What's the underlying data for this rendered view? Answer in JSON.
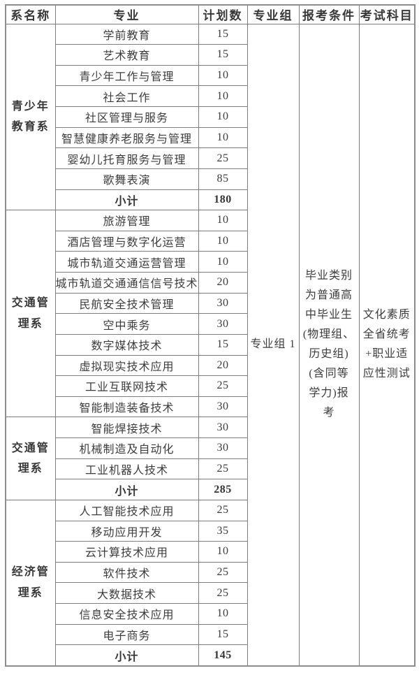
{
  "table": {
    "headers": [
      "系名称",
      "专业",
      "计划数",
      "专业组",
      "报考条件",
      "考试科目"
    ],
    "merged": {
      "group": "专业组 1",
      "condition": "毕业类别\n为普通高\n中毕业生\n(物理组、\n历史组)\n(含同等\n学力)报\n考",
      "subjects": "文化素质\n全省统考\n+职业适\n应性测试"
    },
    "sections": [
      {
        "department": "青少年\n教育系",
        "rows": [
          {
            "major": "学前教育",
            "count": "15"
          },
          {
            "major": "艺术教育",
            "count": "15"
          },
          {
            "major": "青少年工作与管理",
            "count": "10"
          },
          {
            "major": "社会工作",
            "count": "10"
          },
          {
            "major": "社区管理与服务",
            "count": "10"
          },
          {
            "major": "智慧健康养老服务与管理",
            "count": "10"
          },
          {
            "major": "婴幼儿托育服务与管理",
            "count": "25"
          },
          {
            "major": "歌舞表演",
            "count": "85"
          },
          {
            "major": "小计",
            "count": "180",
            "subtotal": true
          }
        ]
      },
      {
        "department": "交通管\n理系",
        "rows": [
          {
            "major": "旅游管理",
            "count": "10"
          },
          {
            "major": "酒店管理与数字化运营",
            "count": "10"
          },
          {
            "major": "城市轨道交通运营管理",
            "count": "10"
          },
          {
            "major": "城市轨道交通通信信号技术",
            "count": "20"
          },
          {
            "major": "民航安全技术管理",
            "count": "30"
          },
          {
            "major": "空中乘务",
            "count": "30"
          },
          {
            "major": "数字媒体技术",
            "count": "15"
          },
          {
            "major": "虚拟现实技术应用",
            "count": "20"
          },
          {
            "major": "工业互联网技术",
            "count": "25"
          },
          {
            "major": "智能制造装备技术",
            "count": "30"
          }
        ]
      },
      {
        "department": "交通管\n理系",
        "rows": [
          {
            "major": "智能焊接技术",
            "count": "30"
          },
          {
            "major": "机械制造及自动化",
            "count": "30"
          },
          {
            "major": "工业机器人技术",
            "count": "25"
          },
          {
            "major": "小计",
            "count": "285",
            "subtotal": true
          }
        ]
      },
      {
        "department": "经济管\n理系",
        "rows": [
          {
            "major": "人工智能技术应用",
            "count": "25"
          },
          {
            "major": "移动应用开发",
            "count": "35"
          },
          {
            "major": "云计算技术应用",
            "count": "10"
          },
          {
            "major": "软件技术",
            "count": "25"
          },
          {
            "major": "大数据技术",
            "count": "25"
          },
          {
            "major": "信息安全技术应用",
            "count": "10"
          },
          {
            "major": "电子商务",
            "count": "15"
          },
          {
            "major": "小计",
            "count": "145",
            "subtotal": true
          }
        ]
      }
    ]
  }
}
